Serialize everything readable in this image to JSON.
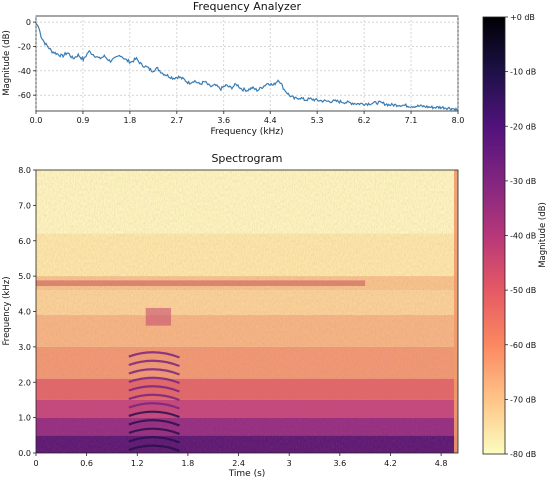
{
  "chart_data": [
    {
      "type": "line",
      "title": "Frequency Analyzer",
      "xlabel": "Frequency (kHz)",
      "ylabel": "Magnitude (dB)",
      "xlim": [
        0.0,
        8.0
      ],
      "ylim": [
        -73,
        5
      ],
      "grid": true,
      "x_ticks": [
        "0.0",
        "0.9",
        "1.8",
        "2.7",
        "3.6",
        "4.4",
        "5.3",
        "6.2",
        "7.1",
        "8.0"
      ],
      "x_tick_values": [
        0.0,
        0.89,
        1.78,
        2.67,
        3.56,
        4.44,
        5.33,
        6.22,
        7.11,
        8.0
      ],
      "y_ticks": [
        "0",
        "-20",
        "-40",
        "-60"
      ],
      "y_tick_values": [
        0,
        -20,
        -40,
        -60
      ],
      "series": [
        {
          "color": "#3b7cb3",
          "x": [
            0.0,
            0.05,
            0.1,
            0.15,
            0.2,
            0.3,
            0.4,
            0.5,
            0.6,
            0.7,
            0.8,
            0.9,
            1.0,
            1.1,
            1.2,
            1.3,
            1.4,
            1.5,
            1.6,
            1.7,
            1.8,
            1.9,
            2.0,
            2.1,
            2.2,
            2.3,
            2.4,
            2.5,
            2.6,
            2.7,
            2.8,
            2.9,
            3.0,
            3.1,
            3.2,
            3.3,
            3.4,
            3.5,
            3.6,
            3.7,
            3.8,
            3.9,
            4.0,
            4.1,
            4.2,
            4.3,
            4.4,
            4.5,
            4.6,
            4.7,
            4.8,
            4.9,
            5.0,
            5.1,
            5.2,
            5.3,
            5.5,
            5.7,
            5.9,
            6.1,
            6.3,
            6.5,
            6.7,
            6.9,
            7.1,
            7.3,
            7.5,
            7.7,
            7.9,
            8.0
          ],
          "y": [
            -1,
            -4,
            -12,
            -16,
            -19,
            -24,
            -26,
            -28,
            -25,
            -30,
            -27,
            -31,
            -24,
            -27,
            -30,
            -28,
            -32,
            -30,
            -27,
            -31,
            -33,
            -30,
            -35,
            -37,
            -40,
            -38,
            -42,
            -44,
            -46,
            -45,
            -47,
            -50,
            -48,
            -51,
            -49,
            -53,
            -52,
            -55,
            -52,
            -54,
            -51,
            -55,
            -56,
            -54,
            -56,
            -53,
            -50,
            -52,
            -47,
            -55,
            -60,
            -63,
            -62,
            -64,
            -63,
            -64,
            -65,
            -65,
            -66,
            -67,
            -67,
            -66,
            -68,
            -68,
            -69,
            -69,
            -70,
            -70,
            -71,
            -72
          ]
        }
      ]
    },
    {
      "type": "heatmap",
      "title": "Spectrogram",
      "xlabel": "Time (s)",
      "ylabel": "Frequency (kHz)",
      "xlim": [
        0,
        5.0
      ],
      "ylim": [
        0,
        8.0
      ],
      "x_ticks": [
        "0",
        "0.6",
        "1.2",
        "1.8",
        "2.4",
        "3",
        "3.6",
        "4.2",
        "4.8"
      ],
      "x_tick_values": [
        0,
        0.6,
        1.2,
        1.8,
        2.4,
        3.0,
        3.6,
        4.2,
        4.8
      ],
      "y_ticks": [
        "0.0",
        "1.0",
        "2.0",
        "3.0",
        "4.0",
        "5.0",
        "6.0",
        "7.0",
        "8.0"
      ],
      "y_tick_values": [
        0,
        1,
        2,
        3,
        4,
        5,
        6,
        7,
        8
      ],
      "colorbar": {
        "label": "Magnitude (dB)",
        "range": [
          -80,
          0
        ],
        "ticks": [
          "+0 dB",
          "-10 dB",
          "-20 dB",
          "-30 dB",
          "-40 dB",
          "-50 dB",
          "-60 dB",
          "-70 dB",
          "-80 dB"
        ],
        "tick_values": [
          0,
          -10,
          -20,
          -30,
          -40,
          -50,
          -60,
          -70,
          -80
        ],
        "colormap": [
          "#fcfdbf",
          "#fec488",
          "#fb8861",
          "#e55964",
          "#b73779",
          "#812581",
          "#51127c",
          "#1d1147",
          "#000004"
        ]
      },
      "features": [
        {
          "name": "tone-band",
          "freq_khz": 4.8,
          "db": -48
        },
        {
          "name": "harmonic-stack",
          "time_s": [
            1.1,
            1.7
          ],
          "freq_khz": [
            0.2,
            3.0
          ]
        },
        {
          "name": "low-band",
          "freq_khz": [
            0.0,
            2.0
          ],
          "db": -38
        }
      ]
    }
  ]
}
